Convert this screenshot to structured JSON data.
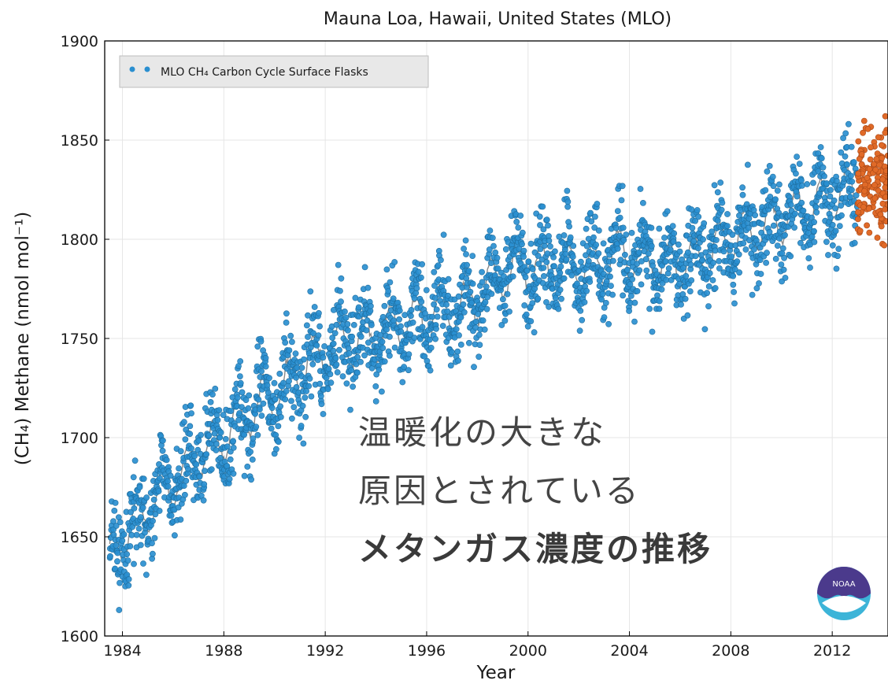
{
  "chart_data": {
    "type": "scatter",
    "title": "Mauna Loa, Hawaii, United States (MLO)",
    "xlabel": "Year",
    "ylabel": "(CH₄) Methane (nmol mol⁻¹)",
    "xlim": [
      1983.3,
      2014.2
    ],
    "ylim": [
      1600,
      1900
    ],
    "xticks": [
      1984,
      1988,
      1992,
      1996,
      2000,
      2004,
      2008,
      2012
    ],
    "yticks": [
      1600,
      1650,
      1700,
      1750,
      1800,
      1850,
      1900
    ],
    "grid": true,
    "legend": {
      "position": "top-left",
      "label": "MLO CH₄ Carbon Cycle Surface Flasks"
    },
    "series": [
      {
        "name": "MLO CH₄ Carbon Cycle Surface Flasks",
        "color": "#2a8fd0",
        "trend": [
          [
            1983.5,
            1638
          ],
          [
            1984.0,
            1650
          ],
          [
            1984.5,
            1655
          ],
          [
            1985.0,
            1665
          ],
          [
            1985.5,
            1670
          ],
          [
            1986.0,
            1678
          ],
          [
            1986.5,
            1683
          ],
          [
            1987.0,
            1690
          ],
          [
            1987.5,
            1694
          ],
          [
            1988.0,
            1701
          ],
          [
            1988.5,
            1706
          ],
          [
            1989.0,
            1713
          ],
          [
            1989.5,
            1717
          ],
          [
            1990.0,
            1722
          ],
          [
            1990.5,
            1728
          ],
          [
            1991.0,
            1734
          ],
          [
            1991.5,
            1739
          ],
          [
            1992.0,
            1743
          ],
          [
            1992.5,
            1747
          ],
          [
            1993.0,
            1748
          ],
          [
            1993.5,
            1749
          ],
          [
            1994.0,
            1752
          ],
          [
            1994.5,
            1755
          ],
          [
            1995.0,
            1758
          ],
          [
            1995.5,
            1759
          ],
          [
            1996.0,
            1761
          ],
          [
            1996.5,
            1763
          ],
          [
            1997.0,
            1764
          ],
          [
            1997.5,
            1766
          ],
          [
            1998.0,
            1770
          ],
          [
            1998.5,
            1777
          ],
          [
            1999.0,
            1782
          ],
          [
            1999.5,
            1785
          ],
          [
            2000.0,
            1786
          ],
          [
            2000.5,
            1786
          ],
          [
            2001.0,
            1786
          ],
          [
            2001.5,
            1786
          ],
          [
            2002.0,
            1786
          ],
          [
            2002.5,
            1787
          ],
          [
            2003.0,
            1789
          ],
          [
            2003.5,
            1792
          ],
          [
            2004.0,
            1792
          ],
          [
            2004.5,
            1790
          ],
          [
            2005.0,
            1789
          ],
          [
            2005.5,
            1788
          ],
          [
            2006.0,
            1788
          ],
          [
            2006.5,
            1789
          ],
          [
            2007.0,
            1792
          ],
          [
            2007.5,
            1796
          ],
          [
            2008.0,
            1800
          ],
          [
            2008.5,
            1803
          ],
          [
            2009.0,
            1806
          ],
          [
            2009.5,
            1808
          ],
          [
            2010.0,
            1811
          ],
          [
            2010.5,
            1813
          ],
          [
            2011.0,
            1815
          ],
          [
            2011.5,
            1817
          ],
          [
            2012.0,
            1820
          ],
          [
            2012.5,
            1823
          ],
          [
            2013.0,
            1826
          ]
        ],
        "range_note": "seasonal scatter about trend, amplitude ±20–30 nmol/mol"
      },
      {
        "name": "",
        "color": "#e06a28",
        "x_range": [
          2013.0,
          2014.2
        ],
        "y_range": [
          1797,
          1878
        ]
      }
    ]
  },
  "caption": {
    "line1": "温暖化の大きな",
    "line2": "原因とされている",
    "line3": "メタンガス濃度の推移"
  },
  "logo": {
    "text": "NOAA",
    "color_top": "#4b3a8c",
    "color_bottom": "#3cb4d8"
  }
}
